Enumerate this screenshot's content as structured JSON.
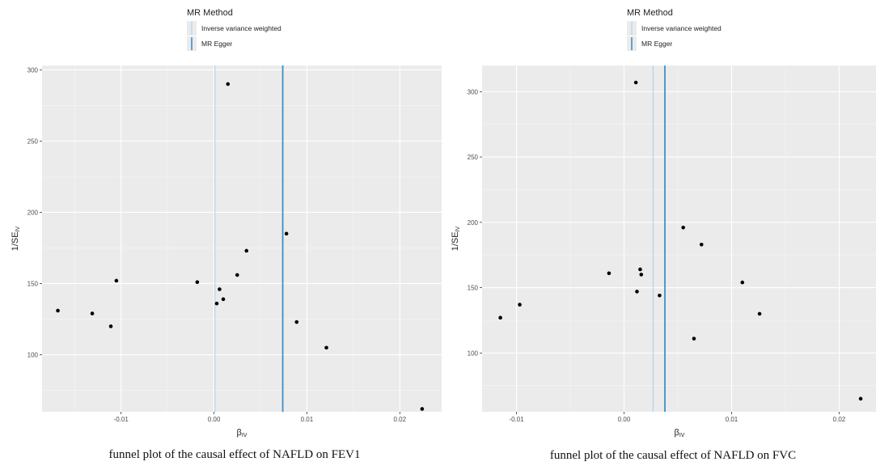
{
  "charts": [
    {
      "legend": {
        "title": "MR Method",
        "items": [
          {
            "label": "Inverse variance weighted",
            "color": "#a6d2ec"
          },
          {
            "label": "MR Egger",
            "color": "#3f8fc6"
          }
        ]
      },
      "caption": "funnel plot of the causal effect of NAFLD on FEV1"
    },
    {
      "legend": {
        "title": "MR Method",
        "items": [
          {
            "label": "Inverse variance weighted",
            "color": "#a6d2ec"
          },
          {
            "label": "MR Egger",
            "color": "#3f8fc6"
          }
        ]
      },
      "caption": "funnel plot of the causal effect of NAFLD on FVC"
    }
  ],
  "chart_data": [
    {
      "type": "scatter",
      "title": "",
      "xlabel_main": "β",
      "xlabel_sub": "IV",
      "ylabel_main": "1/SE",
      "ylabel_sub": "IV",
      "xlim": [
        -0.0185,
        0.0245
      ],
      "ylim": [
        60,
        303
      ],
      "xticks": [
        -0.01,
        0.0,
        0.01,
        0.02
      ],
      "xtick_labels": [
        "-0.01",
        "0.00",
        "0.01",
        "0.02"
      ],
      "yticks": [
        100,
        150,
        200,
        250,
        300
      ],
      "ytick_labels": [
        "100",
        "150",
        "200",
        "250",
        "300"
      ],
      "grid": true,
      "legend_position": "top",
      "vlines": [
        {
          "method": "Inverse variance weighted",
          "x": 0.0001,
          "color": "#a6d2ec"
        },
        {
          "method": "MR Egger",
          "x": 0.0074,
          "color": "#3f8fc6"
        }
      ],
      "points": [
        {
          "x": -0.0168,
          "y": 131
        },
        {
          "x": -0.0131,
          "y": 129
        },
        {
          "x": -0.0111,
          "y": 120
        },
        {
          "x": -0.0105,
          "y": 152
        },
        {
          "x": -0.0018,
          "y": 151
        },
        {
          "x": 0.0003,
          "y": 136
        },
        {
          "x": 0.0006,
          "y": 146
        },
        {
          "x": 0.001,
          "y": 139
        },
        {
          "x": 0.0015,
          "y": 290
        },
        {
          "x": 0.0025,
          "y": 156
        },
        {
          "x": 0.0035,
          "y": 173
        },
        {
          "x": 0.0078,
          "y": 185
        },
        {
          "x": 0.0089,
          "y": 123
        },
        {
          "x": 0.0121,
          "y": 105
        },
        {
          "x": 0.0224,
          "y": 62
        }
      ]
    },
    {
      "type": "scatter",
      "title": "",
      "xlabel_main": "β",
      "xlabel_sub": "IV",
      "ylabel_main": "1/SE",
      "ylabel_sub": "IV",
      "xlim": [
        -0.0132,
        0.0235
      ],
      "ylim": [
        55,
        320
      ],
      "xticks": [
        -0.01,
        0.0,
        0.01,
        0.02
      ],
      "xtick_labels": [
        "-0.01",
        "0.00",
        "0.01",
        "0.02"
      ],
      "yticks": [
        100,
        150,
        200,
        250,
        300
      ],
      "ytick_labels": [
        "100",
        "150",
        "200",
        "250",
        "300"
      ],
      "grid": true,
      "legend_position": "top",
      "vlines": [
        {
          "method": "Inverse variance weighted",
          "x": 0.0027,
          "color": "#a6d2ec"
        },
        {
          "method": "MR Egger",
          "x": 0.0038,
          "color": "#3f8fc6"
        }
      ],
      "points": [
        {
          "x": -0.0115,
          "y": 127
        },
        {
          "x": -0.0097,
          "y": 137
        },
        {
          "x": -0.0014,
          "y": 161
        },
        {
          "x": 0.0011,
          "y": 307
        },
        {
          "x": 0.0012,
          "y": 147
        },
        {
          "x": 0.0015,
          "y": 164
        },
        {
          "x": 0.0016,
          "y": 160
        },
        {
          "x": 0.0033,
          "y": 144
        },
        {
          "x": 0.0055,
          "y": 196
        },
        {
          "x": 0.0065,
          "y": 111
        },
        {
          "x": 0.0072,
          "y": 183
        },
        {
          "x": 0.011,
          "y": 154
        },
        {
          "x": 0.0126,
          "y": 130
        },
        {
          "x": 0.022,
          "y": 65
        }
      ]
    }
  ]
}
